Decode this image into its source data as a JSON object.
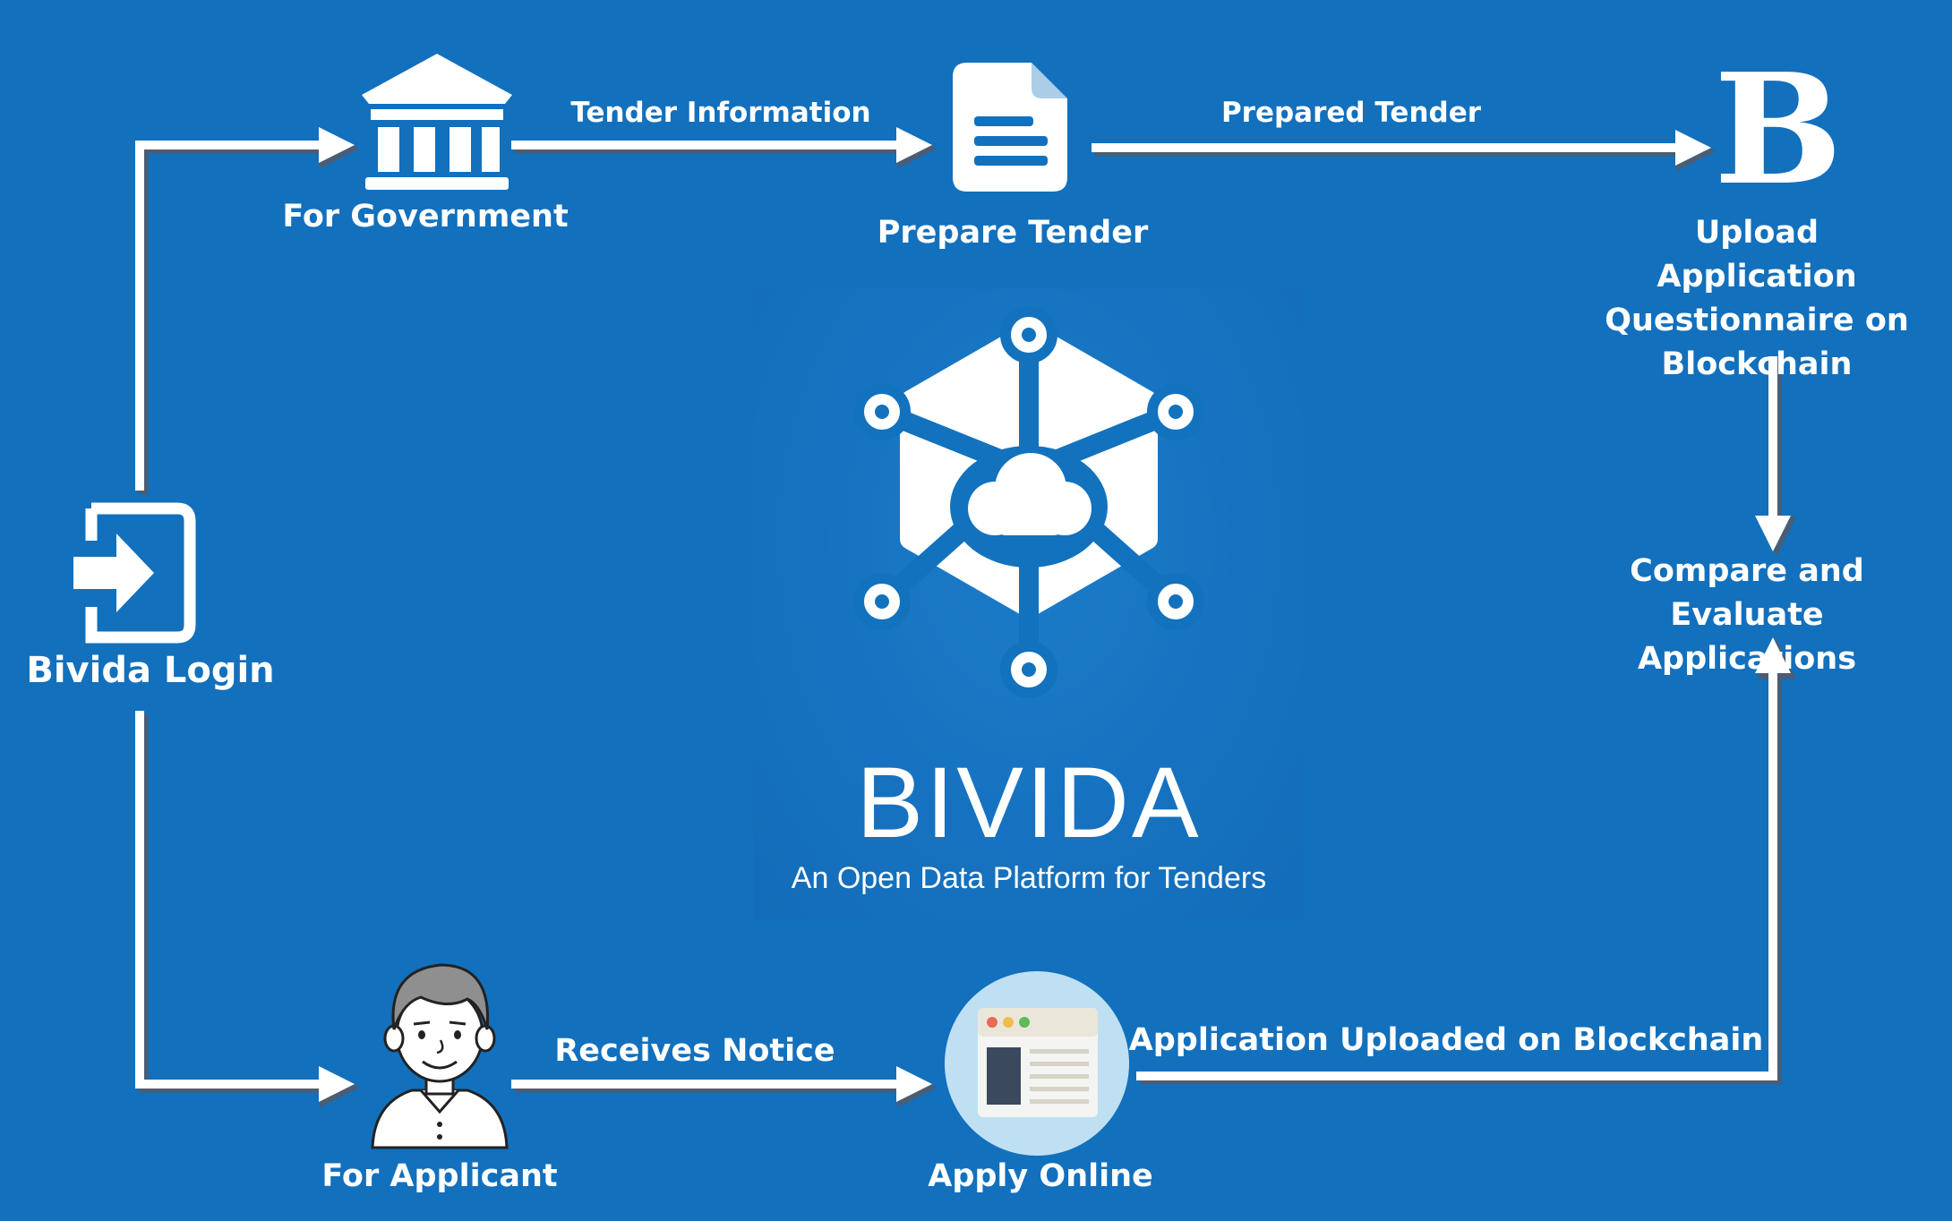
{
  "diagram": {
    "nodes": {
      "login": "Bivida Login",
      "government": "For Government",
      "prepare_tender": "Prepare Tender",
      "upload_questionnaire": "Upload Application Questionnaire on Blockchain",
      "compare_evaluate": "Compare and Evaluate Applications",
      "applicant": "For Applicant",
      "apply_online": "Apply Online"
    },
    "edges": {
      "tender_information": "Tender Information",
      "prepared_tender": "Prepared Tender",
      "receives_notice": "Receives Notice",
      "application_uploaded": "Application Uploaded on Blockchain"
    },
    "icons": {
      "login": "login-icon",
      "government": "government-building-icon",
      "prepare_tender": "document-icon",
      "upload_questionnaire": "blockchain-b-icon",
      "applicant": "person-avatar-icon",
      "apply_online": "browser-window-icon",
      "logo": "bivida-network-logo-icon"
    },
    "icon_glyphs": {
      "blockchain": "B"
    }
  },
  "brand": {
    "title": "BIVIDA",
    "tagline": "An Open Data Platform for Tenders"
  },
  "colors": {
    "background": "#1270bd",
    "foreground": "#ffffff",
    "connector_shadow": "#4a5d74",
    "applicant_hair": "#8f8f8f",
    "browser_circle": "#bfe0f3",
    "browser_dot_red": "#e96a57",
    "browser_dot_yellow": "#f0bc4c",
    "browser_dot_green": "#5fba5a",
    "browser_sidebar": "#3a4a5c"
  }
}
